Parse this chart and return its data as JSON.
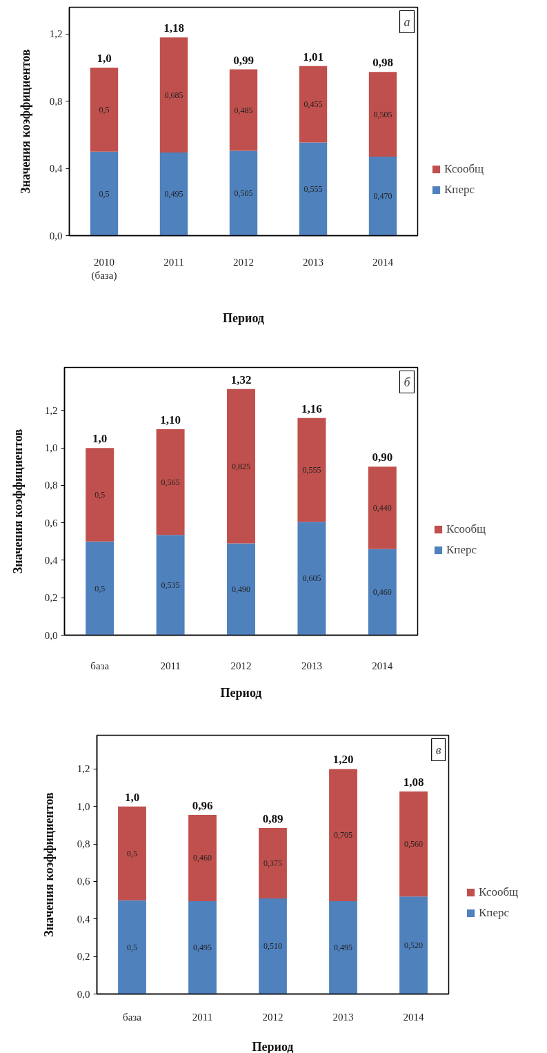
{
  "chart_data": [
    {
      "type": "bar",
      "stacked": true,
      "xlabel": "Период",
      "ylabel": "Значения коэффициентов",
      "categories": [
        "2010\n(база)",
        "2011",
        "2012",
        "2013",
        "2014"
      ],
      "series": [
        {
          "name": "Кперс",
          "color": "#4f81bd",
          "values": [
            0.5,
            0.495,
            0.505,
            0.555,
            0.47
          ],
          "value_labels": [
            "0,5",
            "0,495",
            "0,505",
            "0,555",
            "0,470"
          ]
        },
        {
          "name": "Ксообщ",
          "color": "#c0504d",
          "values": [
            0.5,
            0.685,
            0.485,
            0.455,
            0.505
          ],
          "value_labels": [
            "0,5",
            "0,685",
            "0,485",
            "0,455",
            "0,505"
          ]
        }
      ],
      "totals": [
        "1,0",
        "1,18",
        "0,99",
        "1,01",
        "0,98"
      ],
      "ylim": [
        0,
        1.36
      ],
      "yticks": [
        {
          "value": 0,
          "label": "0,0"
        },
        {
          "value": 0.4,
          "label": "0,4"
        },
        {
          "value": 0.8,
          "label": "0,8"
        },
        {
          "value": 1.2,
          "label": "1,2"
        }
      ],
      "legend": "right",
      "annotations": [
        "а"
      ]
    },
    {
      "type": "bar",
      "stacked": true,
      "xlabel": "Период",
      "ylabel": "Значения коэффициентов",
      "categories": [
        "база",
        "2011",
        "2012",
        "2013",
        "2014"
      ],
      "series": [
        {
          "name": "Кперс",
          "color": "#4f81bd",
          "values": [
            0.5,
            0.535,
            0.49,
            0.605,
            0.46
          ],
          "value_labels": [
            "0,5",
            "0,535",
            "0,490",
            "0,605",
            "0,460"
          ]
        },
        {
          "name": "Ксообщ",
          "color": "#c0504d",
          "values": [
            0.5,
            0.565,
            0.825,
            0.555,
            0.44
          ],
          "value_labels": [
            "0,5",
            "0,565",
            "0,825",
            "0,555",
            "0,440"
          ]
        }
      ],
      "totals": [
        "1,0",
        "1,10",
        "1,32",
        "1,16",
        "0,90"
      ],
      "ylim": [
        0,
        1.43
      ],
      "yticks": [
        {
          "value": 0,
          "label": "0,0"
        },
        {
          "value": 0.2,
          "label": "0,2"
        },
        {
          "value": 0.4,
          "label": "0,4"
        },
        {
          "value": 0.6,
          "label": "0,6"
        },
        {
          "value": 0.8,
          "label": "0,8"
        },
        {
          "value": 1.0,
          "label": "1,0"
        },
        {
          "value": 1.2,
          "label": "1,2"
        }
      ],
      "legend": "right",
      "annotations": [
        "б"
      ]
    },
    {
      "type": "bar",
      "stacked": true,
      "xlabel": "Период",
      "ylabel": "Значения коэффициентов",
      "categories": [
        "база",
        "2011",
        "2012",
        "2013",
        "2014"
      ],
      "series": [
        {
          "name": "Кперс",
          "color": "#4f81bd",
          "values": [
            0.5,
            0.495,
            0.51,
            0.495,
            0.52
          ],
          "value_labels": [
            "0,5",
            "0,495",
            "0,510",
            "0,495",
            "0,520"
          ]
        },
        {
          "name": "Ксообщ",
          "color": "#c0504d",
          "values": [
            0.5,
            0.46,
            0.375,
            0.705,
            0.56
          ],
          "value_labels": [
            "0,5",
            "0,460",
            "0,375",
            "0,705",
            "0,560"
          ]
        }
      ],
      "totals": [
        "1,0",
        "0,96",
        "0,89",
        "1,20",
        "1,08"
      ],
      "ylim": [
        0,
        1.38
      ],
      "yticks": [
        {
          "value": 0,
          "label": "0,0"
        },
        {
          "value": 0.2,
          "label": "0,2"
        },
        {
          "value": 0.4,
          "label": "0,4"
        },
        {
          "value": 0.6,
          "label": "0,6"
        },
        {
          "value": 0.8,
          "label": "0,8"
        },
        {
          "value": 1.0,
          "label": "1,0"
        },
        {
          "value": 1.2,
          "label": "1,2"
        }
      ],
      "legend": "right",
      "annotations": [
        "в"
      ]
    }
  ]
}
